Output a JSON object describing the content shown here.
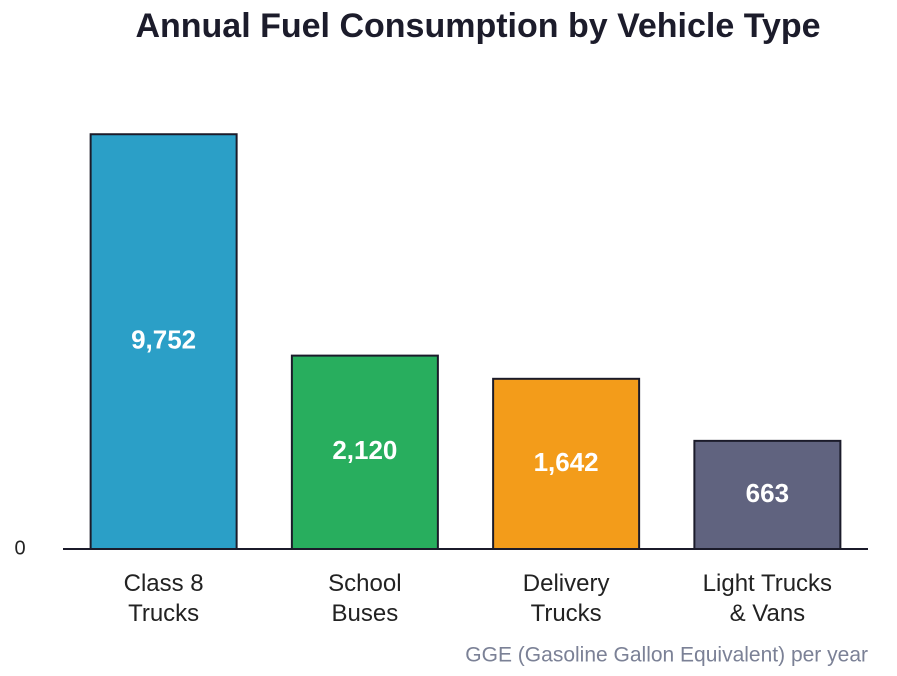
{
  "chart_data": {
    "type": "bar",
    "title": "Annual Fuel Consumption by Vehicle Type",
    "x_label": "GGE (Gasoline Gallon Equivalent) per year",
    "categories": [
      "Class 8\nTrucks",
      "School\nBuses",
      "Delivery\nTrucks",
      "Light Trucks\n& Vans"
    ],
    "values": [
      9752,
      2120,
      1642,
      663
    ],
    "value_labels": [
      "9,752",
      "2,120",
      "1,642",
      "663"
    ],
    "colors": [
      "#2b9fc7",
      "#28ae5e",
      "#f39c1a",
      "#60637f"
    ],
    "scale": "sqrt",
    "ylim": [
      0,
      10000
    ],
    "yticks": [
      0
    ],
    "grid": false
  }
}
